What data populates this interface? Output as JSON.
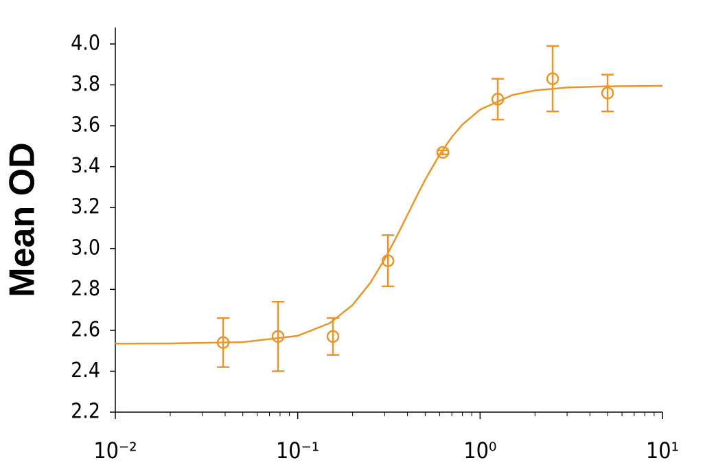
{
  "chart_data": {
    "type": "scatter",
    "y_label": "Mean OD",
    "xscale": "log",
    "color": "#e8962a",
    "xlim": [
      0.01,
      10
    ],
    "xticks": [
      {
        "value": 0.01,
        "label": "10⁻²"
      },
      {
        "value": 0.1,
        "label": "10⁻¹"
      },
      {
        "value": 1,
        "label": "10⁰"
      },
      {
        "value": 10,
        "label": "10¹"
      }
    ],
    "xminorticks": [
      0.02,
      0.03,
      0.04,
      0.05,
      0.06,
      0.07,
      0.08,
      0.09,
      0.2,
      0.3,
      0.4,
      0.5,
      0.6,
      0.7,
      0.8,
      0.9,
      2,
      3,
      4,
      5,
      6,
      7,
      8,
      9
    ],
    "ylim": [
      2.2,
      4.0
    ],
    "yticks": [
      2.2,
      2.4,
      2.6,
      2.8,
      {
        "value": 3,
        "label": "3.0"
      },
      3.2,
      3.4,
      3.6,
      3.8,
      {
        "value": 4,
        "label": "4.0"
      }
    ],
    "series": [
      {
        "style": "points",
        "x": [
          0.039,
          0.078,
          0.156,
          0.3125,
          0.625,
          1.25,
          2.5,
          5
        ],
        "values": [
          2.54,
          2.57,
          2.57,
          2.94,
          3.47,
          3.73,
          3.83,
          3.76
        ],
        "errors": [
          0.12,
          0.17,
          0.09,
          0.125,
          0.01,
          0.1,
          0.16,
          0.09
        ]
      },
      {
        "style": "line",
        "x": [
          0.01,
          0.02,
          0.05,
          0.1,
          0.15,
          0.2,
          0.25,
          0.3,
          0.35,
          0.4,
          0.45,
          0.5,
          0.6,
          0.7,
          0.8,
          1,
          1.5,
          2,
          3,
          5,
          10
        ],
        "values": [
          2.535,
          2.536,
          2.542,
          2.573,
          2.635,
          2.724,
          2.832,
          2.948,
          3.061,
          3.165,
          3.257,
          3.336,
          3.459,
          3.545,
          3.606,
          3.679,
          3.75,
          3.773,
          3.787,
          3.793,
          3.795
        ]
      }
    ]
  }
}
